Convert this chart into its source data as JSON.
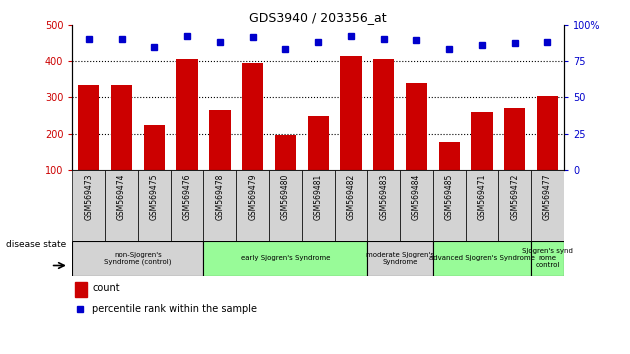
{
  "title": "GDS3940 / 203356_at",
  "samples": [
    "GSM569473",
    "GSM569474",
    "GSM569475",
    "GSM569476",
    "GSM569478",
    "GSM569479",
    "GSM569480",
    "GSM569481",
    "GSM569482",
    "GSM569483",
    "GSM569484",
    "GSM569485",
    "GSM569471",
    "GSM569472",
    "GSM569477"
  ],
  "counts": [
    335,
    335,
    225,
    405,
    265,
    395,
    195,
    248,
    413,
    405,
    340,
    178,
    260,
    272,
    305
  ],
  "percentile_y": [
    460,
    460,
    440,
    470,
    452,
    465,
    432,
    452,
    468,
    462,
    458,
    432,
    444,
    450,
    452
  ],
  "bar_color": "#cc0000",
  "dot_color": "#0000cc",
  "ylim_left": [
    100,
    500
  ],
  "ylim_right": [
    0,
    100
  ],
  "yticks_left": [
    100,
    200,
    300,
    400,
    500
  ],
  "yticks_right": [
    0,
    25,
    50,
    75,
    100
  ],
  "groups": [
    {
      "label": "non-Sjogren's\nSyndrome (control)",
      "start": 0,
      "end": 4,
      "color": "#d3d3d3"
    },
    {
      "label": "early Sjogren's Syndrome",
      "start": 4,
      "end": 9,
      "color": "#98fb98"
    },
    {
      "label": "moderate Sjogren's\nSyndrome",
      "start": 9,
      "end": 11,
      "color": "#d3d3d3"
    },
    {
      "label": "advanced Sjogren's Syndrome",
      "start": 11,
      "end": 14,
      "color": "#98fb98"
    },
    {
      "label": "Sjogren's synd\nrome\ncontrol",
      "start": 14,
      "end": 15,
      "color": "#98fb98"
    }
  ],
  "disease_state_label": "disease state",
  "legend_count_label": "count",
  "legend_pct_label": "percentile rank within the sample",
  "grid_yticks": [
    200,
    300,
    400
  ],
  "tick_label_color_left": "#cc0000",
  "tick_label_color_right": "#0000cc",
  "sample_box_color": "#d3d3d3"
}
